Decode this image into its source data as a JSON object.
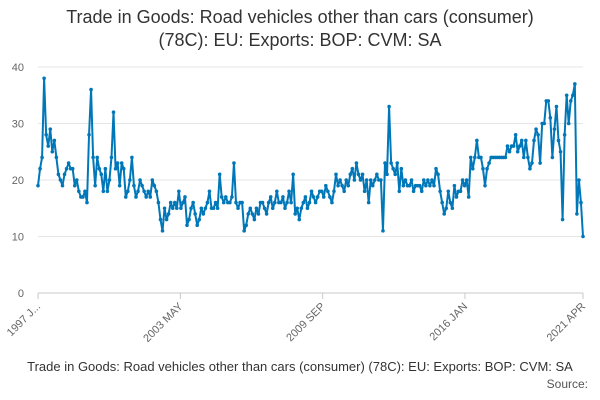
{
  "chart_data": {
    "type": "line",
    "title": "Trade in Goods: Road vehicles other than cars (consumer) (78C): EU: Exports: BOP: CVM: SA",
    "title_lines": [
      "Trade in Goods: Road vehicles other than cars (consumer)",
      "(78C): EU: Exports: BOP: CVM: SA"
    ],
    "ylim": [
      0,
      40
    ],
    "y_ticks": [
      "0",
      "10",
      "20",
      "30",
      "40"
    ],
    "x_tick_labels": [
      "1997 J...",
      "2003 MAY",
      "2009 SEP",
      "2016 JAN",
      "2021 APR"
    ],
    "x_range": [
      "1997-01",
      "2021-04"
    ],
    "grid": "horizontal",
    "legend": "bottom",
    "color": "#0077b8",
    "series": [
      {
        "name": "Trade in Goods: Road vehicles other than cars (consumer) (78C): EU: Exports: BOP: CVM: SA",
        "start": "1997-01",
        "frequency": "monthly",
        "values": [
          19,
          22,
          24,
          38,
          28,
          26,
          29,
          25,
          27,
          24,
          21,
          20,
          19,
          21,
          22,
          23,
          22,
          22,
          19,
          20,
          18,
          17,
          17,
          18,
          16,
          28,
          36,
          24,
          19,
          24,
          22,
          21,
          18,
          22,
          18,
          20,
          24,
          32,
          22,
          23,
          19,
          23,
          22,
          17,
          18,
          20,
          24,
          19,
          17,
          18,
          20,
          19,
          18,
          17,
          18,
          17,
          20,
          19,
          18,
          16,
          13,
          11,
          15,
          13,
          14,
          16,
          15,
          16,
          15,
          18,
          15,
          16,
          17,
          12,
          13,
          15,
          16,
          14,
          12,
          13,
          15,
          14,
          15,
          16,
          18,
          15,
          15,
          16,
          15,
          21,
          17,
          16,
          17,
          16,
          16,
          17,
          23,
          16,
          15,
          16,
          16,
          11,
          12,
          14,
          15,
          14,
          13,
          15,
          14,
          16,
          16,
          15,
          14,
          16,
          17,
          15,
          16,
          18,
          16,
          16,
          17,
          15,
          16,
          18,
          16,
          21,
          14,
          15,
          13,
          15,
          16,
          17,
          15,
          16,
          18,
          17,
          16,
          17,
          18,
          18,
          17,
          19,
          18,
          17,
          16,
          18,
          21,
          19,
          20,
          19,
          18,
          20,
          19,
          21,
          22,
          20,
          23,
          21,
          20,
          21,
          18,
          20,
          16,
          20,
          19,
          20,
          21,
          20,
          20,
          11,
          23,
          21,
          33,
          23,
          22,
          21,
          23,
          18,
          22,
          19,
          20,
          19,
          19,
          20,
          18,
          19,
          19,
          19,
          18,
          20,
          19,
          20,
          19,
          20,
          19,
          22,
          21,
          18,
          16,
          14,
          15,
          18,
          16,
          15,
          19,
          17,
          18,
          18,
          20,
          19,
          20,
          17,
          24,
          22,
          24,
          27,
          24,
          24,
          22,
          19,
          22,
          23,
          24,
          24,
          24,
          24,
          24,
          24,
          24,
          24,
          26,
          25,
          26,
          26,
          28,
          25,
          26,
          27,
          24,
          27,
          24,
          22,
          23,
          27,
          29,
          28,
          23,
          30,
          30,
          34,
          34,
          31,
          24,
          29,
          33,
          27,
          25,
          13,
          28,
          35,
          30,
          34,
          35,
          37,
          14,
          20,
          16,
          10
        ]
      }
    ]
  },
  "source_label": "Source:"
}
